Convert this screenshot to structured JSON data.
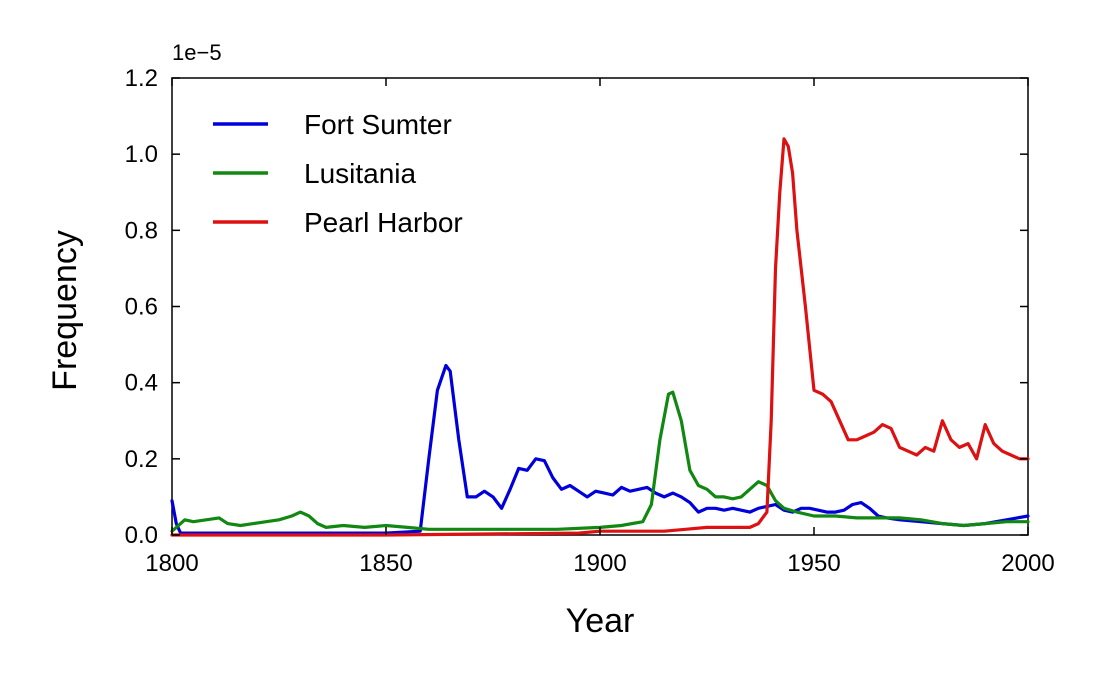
{
  "chart_data": {
    "type": "line",
    "title": "",
    "xlabel": "Year",
    "ylabel": "Frequency",
    "y_multiplier_label": "1e−5",
    "xlim": [
      1800,
      2000
    ],
    "ylim": [
      0,
      1.2
    ],
    "xticks": [
      1800,
      1850,
      1900,
      1950,
      2000
    ],
    "xtick_labels": [
      "1800",
      "1850",
      "1900",
      "1950",
      "2000"
    ],
    "yticks": [
      0,
      0.2,
      0.4,
      0.6,
      0.8,
      1.0,
      1.2
    ],
    "ytick_labels": [
      "0.0",
      "0.2",
      "0.4",
      "0.6",
      "0.8",
      "1.0",
      "1.2"
    ],
    "legend_position": "top-left",
    "grid": false,
    "series": [
      {
        "name": "Fort Sumter",
        "color": "#0000dd",
        "points": [
          [
            1800,
            0.09
          ],
          [
            1801,
            0.03
          ],
          [
            1802,
            0.005
          ],
          [
            1810,
            0.005
          ],
          [
            1830,
            0.005
          ],
          [
            1850,
            0.005
          ],
          [
            1858,
            0.01
          ],
          [
            1860,
            0.2
          ],
          [
            1862,
            0.38
          ],
          [
            1864,
            0.445
          ],
          [
            1865,
            0.43
          ],
          [
            1867,
            0.25
          ],
          [
            1869,
            0.1
          ],
          [
            1871,
            0.1
          ],
          [
            1873,
            0.115
          ],
          [
            1875,
            0.1
          ],
          [
            1877,
            0.07
          ],
          [
            1879,
            0.12
          ],
          [
            1881,
            0.175
          ],
          [
            1883,
            0.17
          ],
          [
            1885,
            0.2
          ],
          [
            1887,
            0.195
          ],
          [
            1889,
            0.15
          ],
          [
            1891,
            0.12
          ],
          [
            1893,
            0.13
          ],
          [
            1895,
            0.115
          ],
          [
            1897,
            0.1
          ],
          [
            1899,
            0.115
          ],
          [
            1901,
            0.11
          ],
          [
            1903,
            0.105
          ],
          [
            1905,
            0.125
          ],
          [
            1907,
            0.115
          ],
          [
            1909,
            0.12
          ],
          [
            1911,
            0.125
          ],
          [
            1913,
            0.11
          ],
          [
            1915,
            0.1
          ],
          [
            1917,
            0.11
          ],
          [
            1919,
            0.1
          ],
          [
            1921,
            0.085
          ],
          [
            1923,
            0.06
          ],
          [
            1925,
            0.07
          ],
          [
            1927,
            0.07
          ],
          [
            1929,
            0.065
          ],
          [
            1931,
            0.07
          ],
          [
            1933,
            0.065
          ],
          [
            1935,
            0.06
          ],
          [
            1937,
            0.07
          ],
          [
            1939,
            0.075
          ],
          [
            1941,
            0.08
          ],
          [
            1943,
            0.065
          ],
          [
            1945,
            0.06
          ],
          [
            1947,
            0.07
          ],
          [
            1949,
            0.07
          ],
          [
            1951,
            0.065
          ],
          [
            1953,
            0.06
          ],
          [
            1955,
            0.06
          ],
          [
            1957,
            0.065
          ],
          [
            1959,
            0.08
          ],
          [
            1961,
            0.085
          ],
          [
            1963,
            0.07
          ],
          [
            1965,
            0.05
          ],
          [
            1967,
            0.045
          ],
          [
            1970,
            0.04
          ],
          [
            1975,
            0.035
          ],
          [
            1980,
            0.03
          ],
          [
            1985,
            0.025
          ],
          [
            1990,
            0.03
          ],
          [
            1995,
            0.04
          ],
          [
            2000,
            0.05
          ]
        ]
      },
      {
        "name": "Lusitania",
        "color": "#118811",
        "points": [
          [
            1800,
            0.01
          ],
          [
            1801,
            0.02
          ],
          [
            1803,
            0.04
          ],
          [
            1805,
            0.035
          ],
          [
            1808,
            0.04
          ],
          [
            1811,
            0.045
          ],
          [
            1813,
            0.03
          ],
          [
            1816,
            0.025
          ],
          [
            1819,
            0.03
          ],
          [
            1822,
            0.035
          ],
          [
            1825,
            0.04
          ],
          [
            1828,
            0.05
          ],
          [
            1830,
            0.06
          ],
          [
            1832,
            0.05
          ],
          [
            1834,
            0.03
          ],
          [
            1836,
            0.02
          ],
          [
            1840,
            0.025
          ],
          [
            1845,
            0.02
          ],
          [
            1850,
            0.025
          ],
          [
            1855,
            0.02
          ],
          [
            1860,
            0.015
          ],
          [
            1870,
            0.015
          ],
          [
            1880,
            0.015
          ],
          [
            1890,
            0.015
          ],
          [
            1900,
            0.02
          ],
          [
            1905,
            0.025
          ],
          [
            1910,
            0.035
          ],
          [
            1912,
            0.08
          ],
          [
            1914,
            0.25
          ],
          [
            1916,
            0.37
          ],
          [
            1917,
            0.375
          ],
          [
            1919,
            0.3
          ],
          [
            1921,
            0.17
          ],
          [
            1923,
            0.13
          ],
          [
            1925,
            0.12
          ],
          [
            1927,
            0.1
          ],
          [
            1929,
            0.1
          ],
          [
            1931,
            0.095
          ],
          [
            1933,
            0.1
          ],
          [
            1935,
            0.12
          ],
          [
            1937,
            0.14
          ],
          [
            1939,
            0.13
          ],
          [
            1941,
            0.09
          ],
          [
            1943,
            0.07
          ],
          [
            1946,
            0.06
          ],
          [
            1950,
            0.05
          ],
          [
            1955,
            0.05
          ],
          [
            1960,
            0.045
          ],
          [
            1965,
            0.045
          ],
          [
            1970,
            0.045
          ],
          [
            1975,
            0.04
          ],
          [
            1980,
            0.03
          ],
          [
            1985,
            0.025
          ],
          [
            1990,
            0.03
          ],
          [
            1995,
            0.035
          ],
          [
            2000,
            0.035
          ]
        ]
      },
      {
        "name": "Pearl Harbor",
        "color": "#dd1111",
        "points": [
          [
            1800,
            0.0
          ],
          [
            1850,
            0.0
          ],
          [
            1895,
            0.005
          ],
          [
            1900,
            0.01
          ],
          [
            1910,
            0.01
          ],
          [
            1915,
            0.01
          ],
          [
            1920,
            0.015
          ],
          [
            1925,
            0.02
          ],
          [
            1930,
            0.02
          ],
          [
            1935,
            0.02
          ],
          [
            1937,
            0.03
          ],
          [
            1939,
            0.06
          ],
          [
            1940,
            0.3
          ],
          [
            1941,
            0.7
          ],
          [
            1942,
            0.9
          ],
          [
            1943,
            1.04
          ],
          [
            1944,
            1.02
          ],
          [
            1945,
            0.95
          ],
          [
            1946,
            0.8
          ],
          [
            1948,
            0.6
          ],
          [
            1950,
            0.38
          ],
          [
            1952,
            0.37
          ],
          [
            1954,
            0.35
          ],
          [
            1956,
            0.3
          ],
          [
            1958,
            0.25
          ],
          [
            1960,
            0.25
          ],
          [
            1962,
            0.26
          ],
          [
            1964,
            0.27
          ],
          [
            1966,
            0.29
          ],
          [
            1968,
            0.28
          ],
          [
            1970,
            0.23
          ],
          [
            1972,
            0.22
          ],
          [
            1974,
            0.21
          ],
          [
            1976,
            0.23
          ],
          [
            1978,
            0.22
          ],
          [
            1980,
            0.3
          ],
          [
            1982,
            0.25
          ],
          [
            1984,
            0.23
          ],
          [
            1986,
            0.24
          ],
          [
            1988,
            0.2
          ],
          [
            1990,
            0.29
          ],
          [
            1992,
            0.24
          ],
          [
            1994,
            0.22
          ],
          [
            1996,
            0.21
          ],
          [
            1998,
            0.2
          ],
          [
            2000,
            0.2
          ]
        ]
      }
    ]
  }
}
